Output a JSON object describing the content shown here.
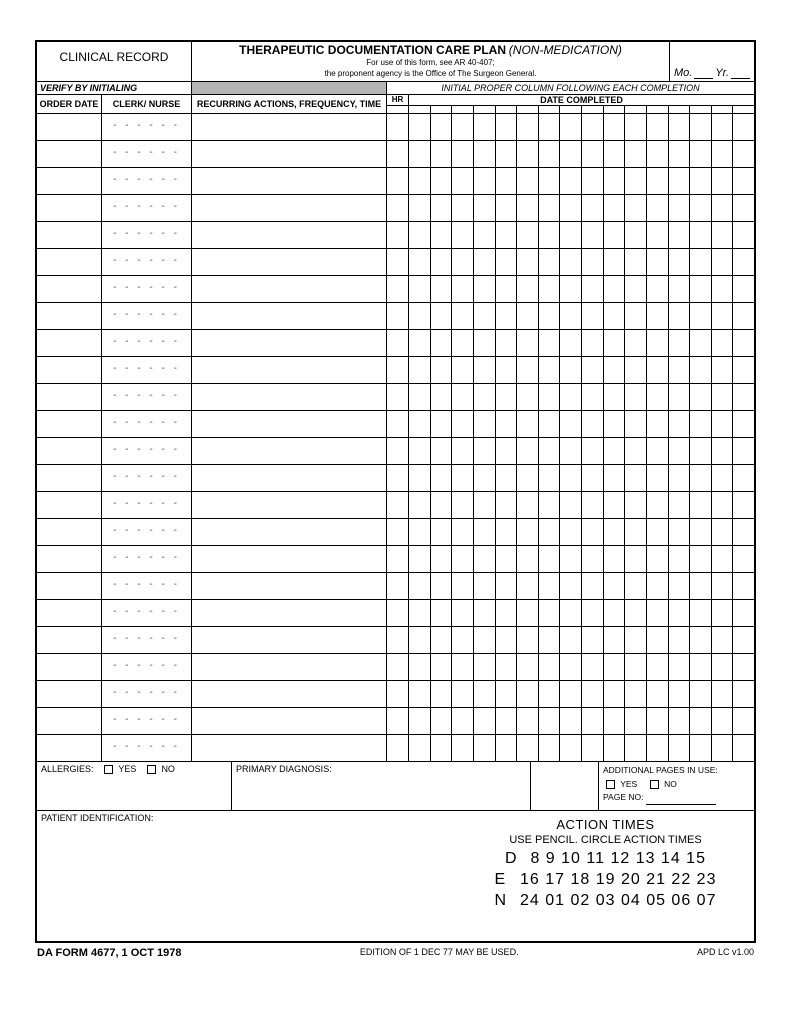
{
  "header": {
    "clinical_record": "CLINICAL RECORD",
    "title_main": "THERAPEUTIC DOCUMENTATION CARE PLAN",
    "title_sub": "(NON-MEDICATION)",
    "note1": "For use of this form, see AR 40-407;",
    "note2": "the proponent agency is the Office of The Surgeon General.",
    "mo": "Mo.",
    "yr": "Yr."
  },
  "band": {
    "verify": "VERIFY BY INITIALING",
    "initial": "INITIAL PROPER COLUMN FOLLOWING EACH COMPLETION"
  },
  "cols": {
    "order": "ORDER DATE",
    "clerk": "CLERK/ NURSE",
    "recur": "RECURRING ACTIONS, FREQUENCY, TIME",
    "hr": "HR",
    "date_completed": "DATE COMPLETED"
  },
  "dashes": "- - - - - -",
  "row_count": 24,
  "grid_cols": 16,
  "allergies": {
    "label": "ALLERGIES:",
    "yes": "YES",
    "no": "NO"
  },
  "diagnosis": "PRIMARY DIAGNOSIS:",
  "additional": {
    "label": "ADDITIONAL PAGES IN USE:",
    "yes": "YES",
    "no": "NO",
    "page_no": "PAGE NO:"
  },
  "patient_id": "PATIENT IDENTIFICATION:",
  "action_times": {
    "title": "ACTION TIMES",
    "sub": "USE PENCIL.  CIRCLE ACTION TIMES",
    "rows": [
      {
        "lead": "D",
        "nums": "8   9   10  11  12  13  14  15"
      },
      {
        "lead": "E",
        "nums": "16  17  18  19  20  21  22  23"
      },
      {
        "lead": "N",
        "nums": "24  01  02  03  04  05  06  07"
      }
    ]
  },
  "footer": {
    "left": "DA FORM 4677, 1 OCT 1978",
    "mid": "EDITION OF 1 DEC 77 MAY BE USED.",
    "right": "APD LC v1.00"
  }
}
